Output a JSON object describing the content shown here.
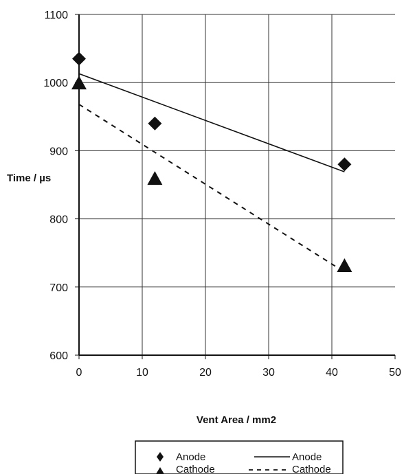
{
  "chart_data": {
    "type": "scatter",
    "title": "",
    "xlabel": "Vent Area / mm2",
    "ylabel": "Time / µs",
    "xlim": [
      0,
      50
    ],
    "ylim": [
      600,
      1100
    ],
    "xticks": [
      0,
      10,
      20,
      30,
      40,
      50
    ],
    "yticks": [
      600,
      700,
      800,
      900,
      1000,
      1100
    ],
    "grid": "vertical and horizontal major gridlines",
    "legend_position": "bottom",
    "series": [
      {
        "name": "Anode",
        "kind": "points",
        "marker": "diamond",
        "x": [
          0,
          12,
          42
        ],
        "y": [
          1035,
          940,
          880
        ]
      },
      {
        "name": "Cathode",
        "kind": "points",
        "marker": "triangle",
        "x": [
          0,
          12,
          42
        ],
        "y": [
          998,
          858,
          730
        ]
      },
      {
        "name": "Anode",
        "kind": "trendline",
        "style": "solid",
        "x": [
          0,
          42
        ],
        "y": [
          1013,
          869
        ]
      },
      {
        "name": "Cathode",
        "kind": "trendline",
        "style": "dashed",
        "x": [
          0,
          42
        ],
        "y": [
          968,
          722
        ]
      }
    ]
  },
  "legend": {
    "items": [
      {
        "label": "Anode",
        "symbol": "diamond-icon"
      },
      {
        "label": "Anode",
        "symbol": "solid-line"
      },
      {
        "label": "Cathode",
        "symbol": "triangle-icon"
      },
      {
        "label": "Cathode",
        "symbol": "dashed-line"
      }
    ]
  }
}
